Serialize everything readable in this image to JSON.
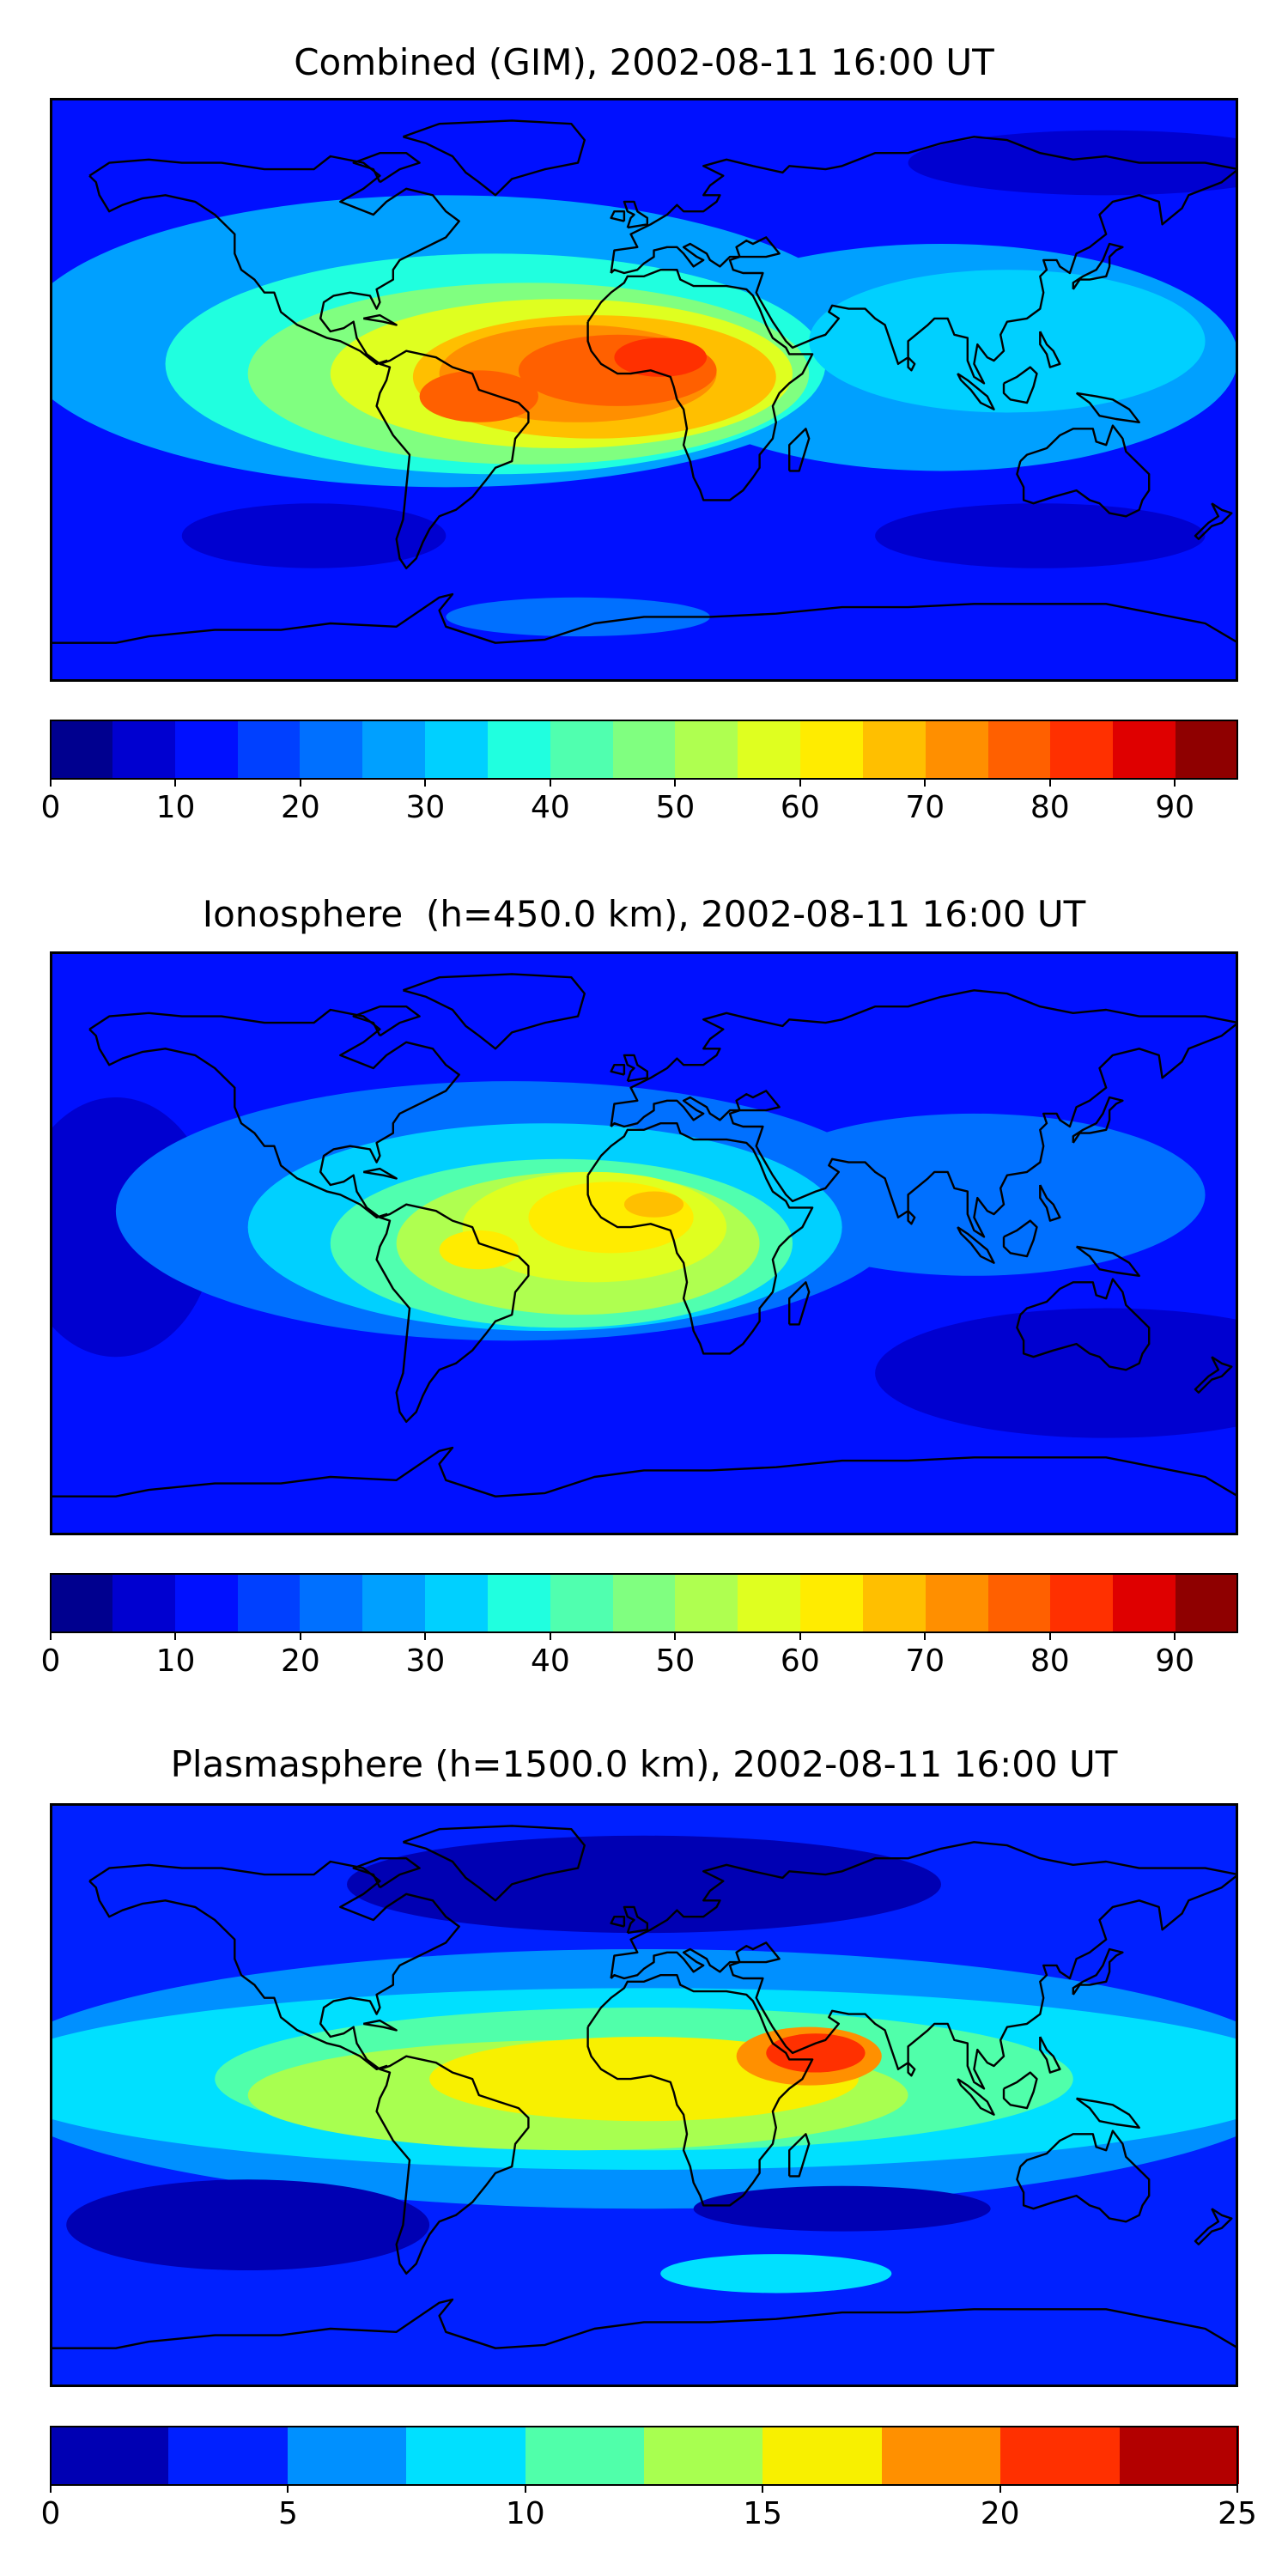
{
  "panels": [
    {
      "title": "Combined (GIM), 2002-08-11 16:00 UT",
      "colorbar": {
        "min": 0,
        "max": 95,
        "bounds": [
          0,
          5,
          10,
          15,
          20,
          25,
          30,
          35,
          40,
          45,
          50,
          55,
          60,
          65,
          70,
          75,
          80,
          85,
          90,
          95
        ],
        "ticks": [
          0,
          10,
          20,
          30,
          40,
          50,
          60,
          70,
          80,
          90
        ],
        "colors": [
          "#00008f",
          "#0000d0",
          "#0010ff",
          "#0040ff",
          "#0070ff",
          "#00a0ff",
          "#00d0ff",
          "#20ffdf",
          "#50ffaf",
          "#80ff80",
          "#afff50",
          "#dfff20",
          "#ffec00",
          "#ffbf00",
          "#ff8f00",
          "#ff6000",
          "#ff3000",
          "#df0000",
          "#8f0000"
        ]
      },
      "field": {
        "background": 2,
        "blobs": [
          {
            "lon": -60,
            "lat": 15,
            "rx": 130,
            "ry": 45,
            "level": 5
          },
          {
            "lon": 90,
            "lat": 10,
            "rx": 90,
            "ry": 35,
            "level": 5
          },
          {
            "lon": -45,
            "lat": 8,
            "rx": 100,
            "ry": 34,
            "level": 7
          },
          {
            "lon": 110,
            "lat": 15,
            "rx": 60,
            "ry": 22,
            "level": 6
          },
          {
            "lon": -35,
            "lat": 5,
            "rx": 85,
            "ry": 28,
            "level": 9
          },
          {
            "lon": -25,
            "lat": 5,
            "rx": 70,
            "ry": 23,
            "level": 11
          },
          {
            "lon": -15,
            "lat": 4,
            "rx": 55,
            "ry": 19,
            "level": 13
          },
          {
            "lon": -20,
            "lat": 5,
            "rx": 42,
            "ry": 15,
            "level": 14
          },
          {
            "lon": -50,
            "lat": -2,
            "rx": 18,
            "ry": 8,
            "level": 15
          },
          {
            "lon": -8,
            "lat": 6,
            "rx": 30,
            "ry": 11,
            "level": 15
          },
          {
            "lon": 5,
            "lat": 10,
            "rx": 14,
            "ry": 6,
            "level": 16
          },
          {
            "lon": -100,
            "lat": -45,
            "rx": 40,
            "ry": 10,
            "level": 1
          },
          {
            "lon": 120,
            "lat": -45,
            "rx": 50,
            "ry": 10,
            "level": 1
          },
          {
            "lon": 140,
            "lat": 70,
            "rx": 60,
            "ry": 10,
            "level": 1
          },
          {
            "lon": -20,
            "lat": -70,
            "rx": 40,
            "ry": 6,
            "level": 4
          }
        ]
      }
    },
    {
      "title": "Ionosphere  (h=450.0 km), 2002-08-11 16:00 UT",
      "colorbar": {
        "min": 0,
        "max": 95,
        "bounds": [
          0,
          5,
          10,
          15,
          20,
          25,
          30,
          35,
          40,
          45,
          50,
          55,
          60,
          65,
          70,
          75,
          80,
          85,
          90,
          95
        ],
        "ticks": [
          0,
          10,
          20,
          30,
          40,
          50,
          60,
          70,
          80,
          90
        ],
        "colors": [
          "#00008f",
          "#0000d0",
          "#0010ff",
          "#0040ff",
          "#0070ff",
          "#00a0ff",
          "#00d0ff",
          "#20ffdf",
          "#50ffaf",
          "#80ff80",
          "#afff50",
          "#dfff20",
          "#ffec00",
          "#ffbf00",
          "#ff8f00",
          "#ff6000",
          "#ff3000",
          "#df0000",
          "#8f0000"
        ]
      },
      "field": {
        "background": 2,
        "blobs": [
          {
            "lon": -160,
            "lat": 5,
            "rx": 30,
            "ry": 40,
            "level": 1
          },
          {
            "lon": 140,
            "lat": -40,
            "rx": 70,
            "ry": 20,
            "level": 1
          },
          {
            "lon": -40,
            "lat": 10,
            "rx": 120,
            "ry": 40,
            "level": 4
          },
          {
            "lon": 100,
            "lat": 15,
            "rx": 70,
            "ry": 25,
            "level": 4
          },
          {
            "lon": -30,
            "lat": 5,
            "rx": 90,
            "ry": 32,
            "level": 6
          },
          {
            "lon": -25,
            "lat": 0,
            "rx": 70,
            "ry": 26,
            "level": 8
          },
          {
            "lon": -20,
            "lat": 0,
            "rx": 55,
            "ry": 22,
            "level": 10
          },
          {
            "lon": -15,
            "lat": 5,
            "rx": 40,
            "ry": 17,
            "level": 11
          },
          {
            "lon": -10,
            "lat": 8,
            "rx": 25,
            "ry": 11,
            "level": 12
          },
          {
            "lon": -50,
            "lat": -2,
            "rx": 12,
            "ry": 6,
            "level": 12
          },
          {
            "lon": 3,
            "lat": 12,
            "rx": 9,
            "ry": 4,
            "level": 13
          }
        ]
      }
    },
    {
      "title": "Plasmasphere (h=1500.0 km), 2002-08-11 16:00 UT",
      "colorbar": {
        "min": 0,
        "max": 25,
        "bounds": [
          0,
          2.5,
          5,
          7.5,
          10,
          12.5,
          15,
          17.5,
          20,
          22.5,
          25
        ],
        "ticks": [
          0,
          5,
          10,
          15,
          20,
          25
        ],
        "colors": [
          "#0000b3",
          "#0020ff",
          "#0090ff",
          "#00e0ff",
          "#50ffaa",
          "#a8ff50",
          "#f8f000",
          "#ff9000",
          "#ff3000",
          "#b30000"
        ]
      },
      "field": {
        "background": 1,
        "blobs": [
          {
            "lon": 0,
            "lat": 5,
            "rx": 200,
            "ry": 40,
            "level": 2
          },
          {
            "lon": 0,
            "lat": 5,
            "rx": 200,
            "ry": 28,
            "level": 3
          },
          {
            "lon": 0,
            "lat": 5,
            "rx": 130,
            "ry": 22,
            "level": 4
          },
          {
            "lon": -20,
            "lat": 0,
            "rx": 100,
            "ry": 17,
            "level": 5
          },
          {
            "lon": 0,
            "lat": 5,
            "rx": 65,
            "ry": 13,
            "level": 6
          },
          {
            "lon": 50,
            "lat": 12,
            "rx": 22,
            "ry": 9,
            "level": 7
          },
          {
            "lon": 52,
            "lat": 13,
            "rx": 15,
            "ry": 6,
            "level": 8
          },
          {
            "lon": -120,
            "lat": -40,
            "rx": 55,
            "ry": 14,
            "level": 0
          },
          {
            "lon": 0,
            "lat": 65,
            "rx": 90,
            "ry": 15,
            "level": 0
          },
          {
            "lon": 60,
            "lat": -35,
            "rx": 45,
            "ry": 7,
            "level": 0
          },
          {
            "lon": 40,
            "lat": -55,
            "rx": 35,
            "ry": 6,
            "level": 3
          }
        ]
      }
    }
  ]
}
